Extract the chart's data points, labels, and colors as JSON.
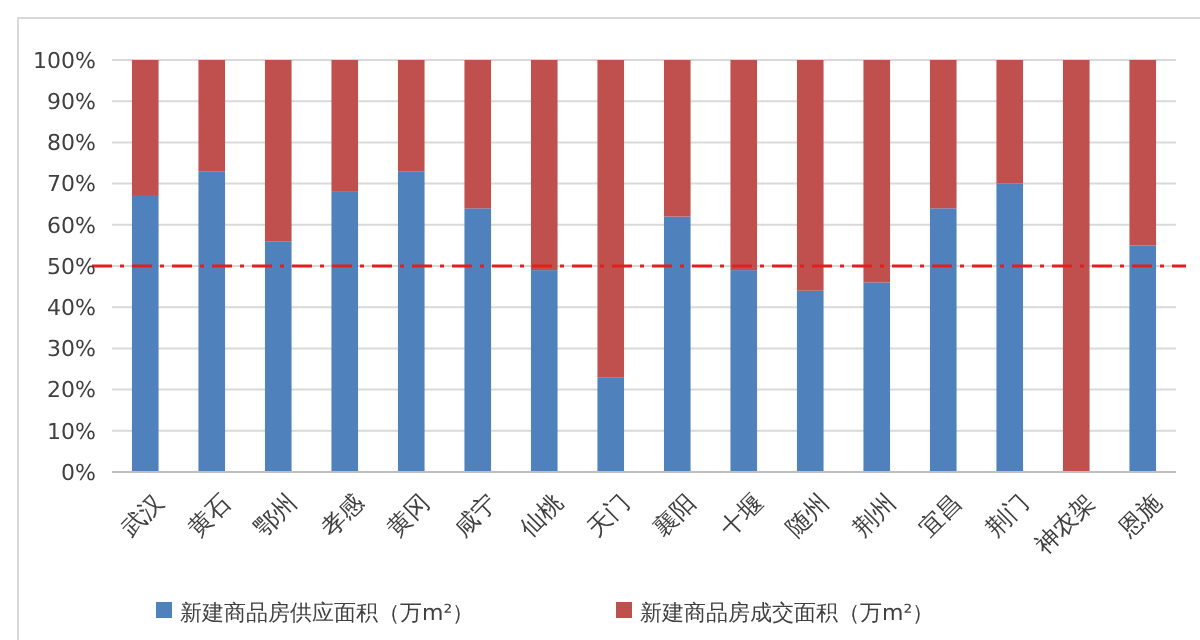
{
  "chart_data": {
    "type": "bar",
    "stacked": true,
    "categories": [
      "武汉",
      "黄石",
      "鄂州",
      "孝感",
      "黄冈",
      "咸宁",
      "仙桃",
      "天门",
      "襄阳",
      "十堰",
      "随州",
      "荆州",
      "宜昌",
      "荆门",
      "神农架",
      "恩施"
    ],
    "series": [
      {
        "name": "新建商品房供应面积（万m²）",
        "color": "#4f81bd",
        "values": [
          67,
          73,
          56,
          68,
          73,
          64,
          49,
          23,
          62,
          49,
          44,
          46,
          64,
          70,
          0,
          55
        ]
      },
      {
        "name": "新建商品房成交面积（万m²）",
        "color": "#c0504d",
        "values": [
          33,
          27,
          44,
          32,
          27,
          36,
          51,
          77,
          38,
          51,
          56,
          54,
          36,
          30,
          100,
          45
        ]
      }
    ],
    "ylim": [
      0,
      100
    ],
    "yticks": [
      {
        "value": 0,
        "label": "0%"
      },
      {
        "value": 10,
        "label": "10%"
      },
      {
        "value": 20,
        "label": "20%"
      },
      {
        "value": 30,
        "label": "30%"
      },
      {
        "value": 40,
        "label": "40%"
      },
      {
        "value": 50,
        "label": "50%"
      },
      {
        "value": 60,
        "label": "60%"
      },
      {
        "value": 70,
        "label": "70%"
      },
      {
        "value": 80,
        "label": "80%"
      },
      {
        "value": 90,
        "label": "90%"
      },
      {
        "value": 100,
        "label": "100%"
      }
    ],
    "grid": "y",
    "legend": "bottom",
    "ref_lines": [
      {
        "axis": "y",
        "value": 50,
        "color": "#e02020",
        "line_style": "dashdot"
      }
    ]
  }
}
